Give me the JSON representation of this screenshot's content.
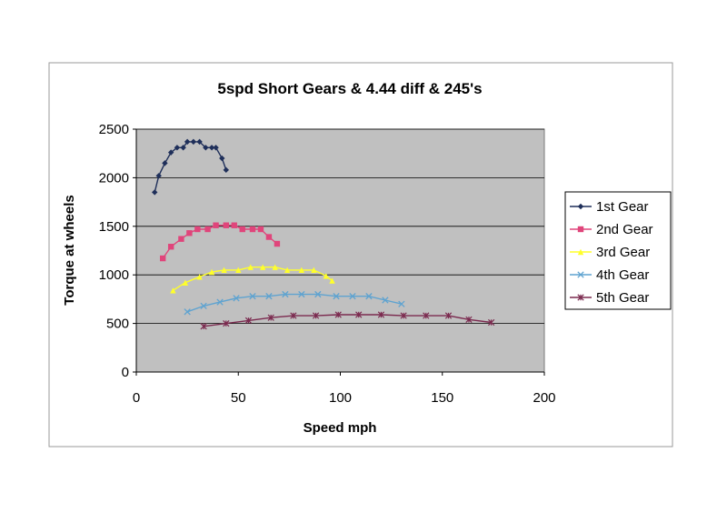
{
  "chart_data": {
    "type": "line",
    "title": "5spd Short Gears & 4.44 diff & 245's",
    "xlabel": "Speed mph",
    "ylabel": "Torque at wheels",
    "xlim": [
      0,
      200
    ],
    "ylim": [
      0,
      2500
    ],
    "xticks": [
      0,
      50,
      100,
      150,
      200
    ],
    "yticks": [
      0,
      500,
      1000,
      1500,
      2000,
      2500
    ],
    "grid": "horizontal",
    "legend_position": "right",
    "series": [
      {
        "name": "1st Gear",
        "color": "#1f2f5a",
        "marker": "diamond",
        "points": [
          [
            9,
            1850
          ],
          [
            11,
            2020
          ],
          [
            14,
            2150
          ],
          [
            17,
            2260
          ],
          [
            20,
            2310
          ],
          [
            23,
            2310
          ],
          [
            25,
            2370
          ],
          [
            28,
            2370
          ],
          [
            31,
            2370
          ],
          [
            34,
            2310
          ],
          [
            37,
            2310
          ],
          [
            39,
            2310
          ],
          [
            42,
            2200
          ],
          [
            44,
            2080
          ]
        ]
      },
      {
        "name": "2nd Gear",
        "color": "#e0457b",
        "marker": "square",
        "points": [
          [
            13,
            1170
          ],
          [
            17,
            1290
          ],
          [
            22,
            1370
          ],
          [
            26,
            1430
          ],
          [
            30,
            1470
          ],
          [
            35,
            1470
          ],
          [
            39,
            1510
          ],
          [
            44,
            1510
          ],
          [
            48,
            1510
          ],
          [
            52,
            1470
          ],
          [
            57,
            1470
          ],
          [
            61,
            1470
          ],
          [
            65,
            1390
          ],
          [
            69,
            1320
          ]
        ]
      },
      {
        "name": "3rd Gear",
        "color": "#ffff2a",
        "marker": "triangle",
        "points": [
          [
            18,
            840
          ],
          [
            24,
            920
          ],
          [
            31,
            980
          ],
          [
            37,
            1030
          ],
          [
            43,
            1050
          ],
          [
            50,
            1050
          ],
          [
            56,
            1080
          ],
          [
            62,
            1080
          ],
          [
            68,
            1080
          ],
          [
            74,
            1050
          ],
          [
            81,
            1050
          ],
          [
            87,
            1050
          ],
          [
            93,
            990
          ],
          [
            96,
            940
          ]
        ]
      },
      {
        "name": "4th Gear",
        "color": "#5fa3d0",
        "marker": "x",
        "points": [
          [
            25,
            620
          ],
          [
            33,
            680
          ],
          [
            41,
            720
          ],
          [
            49,
            760
          ],
          [
            57,
            780
          ],
          [
            65,
            780
          ],
          [
            73,
            800
          ],
          [
            81,
            800
          ],
          [
            89,
            800
          ],
          [
            98,
            780
          ],
          [
            106,
            780
          ],
          [
            114,
            780
          ],
          [
            122,
            740
          ],
          [
            130,
            700
          ]
        ]
      },
      {
        "name": "5th Gear",
        "color": "#7b2a4f",
        "marker": "star",
        "points": [
          [
            33,
            470
          ],
          [
            44,
            500
          ],
          [
            55,
            530
          ],
          [
            66,
            560
          ],
          [
            77,
            580
          ],
          [
            88,
            580
          ],
          [
            99,
            590
          ],
          [
            109,
            590
          ],
          [
            120,
            590
          ],
          [
            131,
            580
          ],
          [
            142,
            580
          ],
          [
            153,
            580
          ],
          [
            163,
            540
          ],
          [
            174,
            510
          ]
        ]
      }
    ]
  }
}
